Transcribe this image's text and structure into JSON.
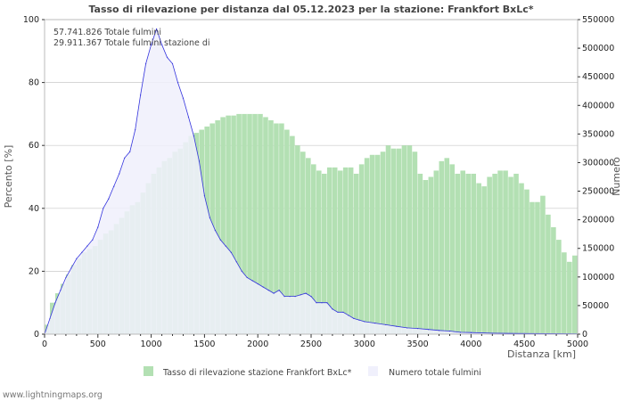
{
  "chart_data": {
    "type": "bar+area",
    "title": "Tasso di rilevazione per distanza dal 05.12.2023 per la stazione: Frankfort BxLc*",
    "xlabel": "Distanza   [km]",
    "ylabel": "Percento   [%]",
    "y2label": "Numero",
    "xlim": [
      0,
      5000
    ],
    "ylim": [
      0,
      100
    ],
    "y2lim": [
      0,
      550000
    ],
    "xticks": [
      "0",
      "500",
      "1000",
      "1500",
      "2000",
      "2500",
      "3000",
      "3500",
      "4000",
      "4500",
      "5000"
    ],
    "yticks": [
      "0",
      "20",
      "40",
      "60",
      "80",
      "100"
    ],
    "y2ticks": [
      "0",
      "50000",
      "100000",
      "150000",
      "200000",
      "250000",
      "300000",
      "350000",
      "400000",
      "450000",
      "500000",
      "550000"
    ],
    "annotations": [
      "57.741.826 Totale fulmini",
      "29.911.367 Totale fulmini stazione di"
    ],
    "legend": [
      "Tasso di rilevazione stazione Frankfort BxLc*",
      "Numero totale fulmini"
    ],
    "legend_position": "bottom",
    "colors": {
      "rate": "#b3e0b3",
      "count_fill": "#f0f0fc",
      "count_line": "#3333dd",
      "grid": "#c8c8c8"
    },
    "series": [
      {
        "name": "Tasso di rilevazione stazione Frankfort BxLc*",
        "axis": "left",
        "x": [
          0,
          50,
          100,
          150,
          200,
          250,
          300,
          350,
          400,
          450,
          500,
          550,
          600,
          650,
          700,
          750,
          800,
          850,
          900,
          950,
          1000,
          1050,
          1100,
          1150,
          1200,
          1250,
          1300,
          1350,
          1400,
          1450,
          1500,
          1550,
          1600,
          1650,
          1700,
          1750,
          1800,
          1850,
          1900,
          1950,
          2000,
          2050,
          2100,
          2150,
          2200,
          2250,
          2300,
          2350,
          2400,
          2450,
          2500,
          2550,
          2600,
          2650,
          2700,
          2750,
          2800,
          2850,
          2900,
          2950,
          3000,
          3050,
          3100,
          3150,
          3200,
          3250,
          3300,
          3350,
          3400,
          3450,
          3500,
          3550,
          3600,
          3650,
          3700,
          3750,
          3800,
          3850,
          3900,
          3950,
          4000,
          4050,
          4100,
          4150,
          4200,
          4250,
          4300,
          4350,
          4400,
          4450,
          4500,
          4550,
          4600,
          4650,
          4700,
          4750,
          4800,
          4850,
          4900,
          4950
        ],
        "values": [
          3,
          10,
          13,
          16,
          19,
          22,
          24,
          26,
          27,
          28,
          30,
          32,
          33,
          35,
          37,
          39,
          41,
          42,
          45,
          48,
          51,
          53,
          55,
          56,
          58,
          59,
          61,
          63,
          64,
          65,
          66,
          67,
          68,
          69,
          69.5,
          69.5,
          70,
          70,
          70,
          70,
          70,
          69,
          68,
          67,
          67,
          65,
          63,
          60,
          58,
          56,
          54,
          52,
          51,
          53,
          53,
          52,
          53,
          53,
          51,
          54,
          56,
          57,
          57,
          58,
          60,
          59,
          59,
          60,
          60,
          58,
          51,
          49,
          50,
          52,
          55,
          56,
          54,
          51,
          52,
          51,
          51,
          48,
          47,
          50,
          51,
          52,
          52,
          50,
          51,
          48,
          46,
          42,
          42,
          44,
          38,
          34,
          30,
          26,
          23,
          25
        ]
      },
      {
        "name": "Numero totale fulmini",
        "axis": "right",
        "x": [
          0,
          50,
          100,
          150,
          200,
          250,
          300,
          350,
          400,
          450,
          500,
          550,
          600,
          650,
          700,
          750,
          800,
          850,
          900,
          950,
          1000,
          1050,
          1100,
          1150,
          1200,
          1250,
          1300,
          1350,
          1400,
          1450,
          1500,
          1550,
          1600,
          1650,
          1700,
          1750,
          1800,
          1850,
          1900,
          1950,
          2000,
          2050,
          2100,
          2150,
          2200,
          2250,
          2300,
          2350,
          2400,
          2450,
          2500,
          2550,
          2600,
          2650,
          2700,
          2750,
          2800,
          2850,
          2900,
          2950,
          3000,
          3100,
          3200,
          3300,
          3400,
          3500,
          3600,
          3700,
          3800,
          3900,
          4000,
          4200,
          4500,
          5000
        ],
        "values": [
          0,
          27500,
          55000,
          77000,
          99000,
          115500,
          132000,
          143000,
          154000,
          165000,
          187000,
          220000,
          236500,
          258500,
          280500,
          308000,
          319000,
          357500,
          418000,
          473000,
          506000,
          533500,
          506000,
          484000,
          473000,
          440000,
          412500,
          379500,
          346500,
          302500,
          242000,
          203500,
          181500,
          165000,
          154000,
          143000,
          126500,
          110000,
          99000,
          93500,
          88000,
          82500,
          77000,
          71500,
          77000,
          66000,
          66000,
          66000,
          68750,
          71500,
          66000,
          55000,
          55000,
          55000,
          44000,
          38500,
          38500,
          33000,
          27500,
          24750,
          22000,
          19250,
          16500,
          13750,
          11000,
          9900,
          8250,
          6600,
          5500,
          3300,
          2750,
          1650,
          1100,
          550
        ]
      }
    ]
  },
  "footer": "www.lightningmaps.org"
}
